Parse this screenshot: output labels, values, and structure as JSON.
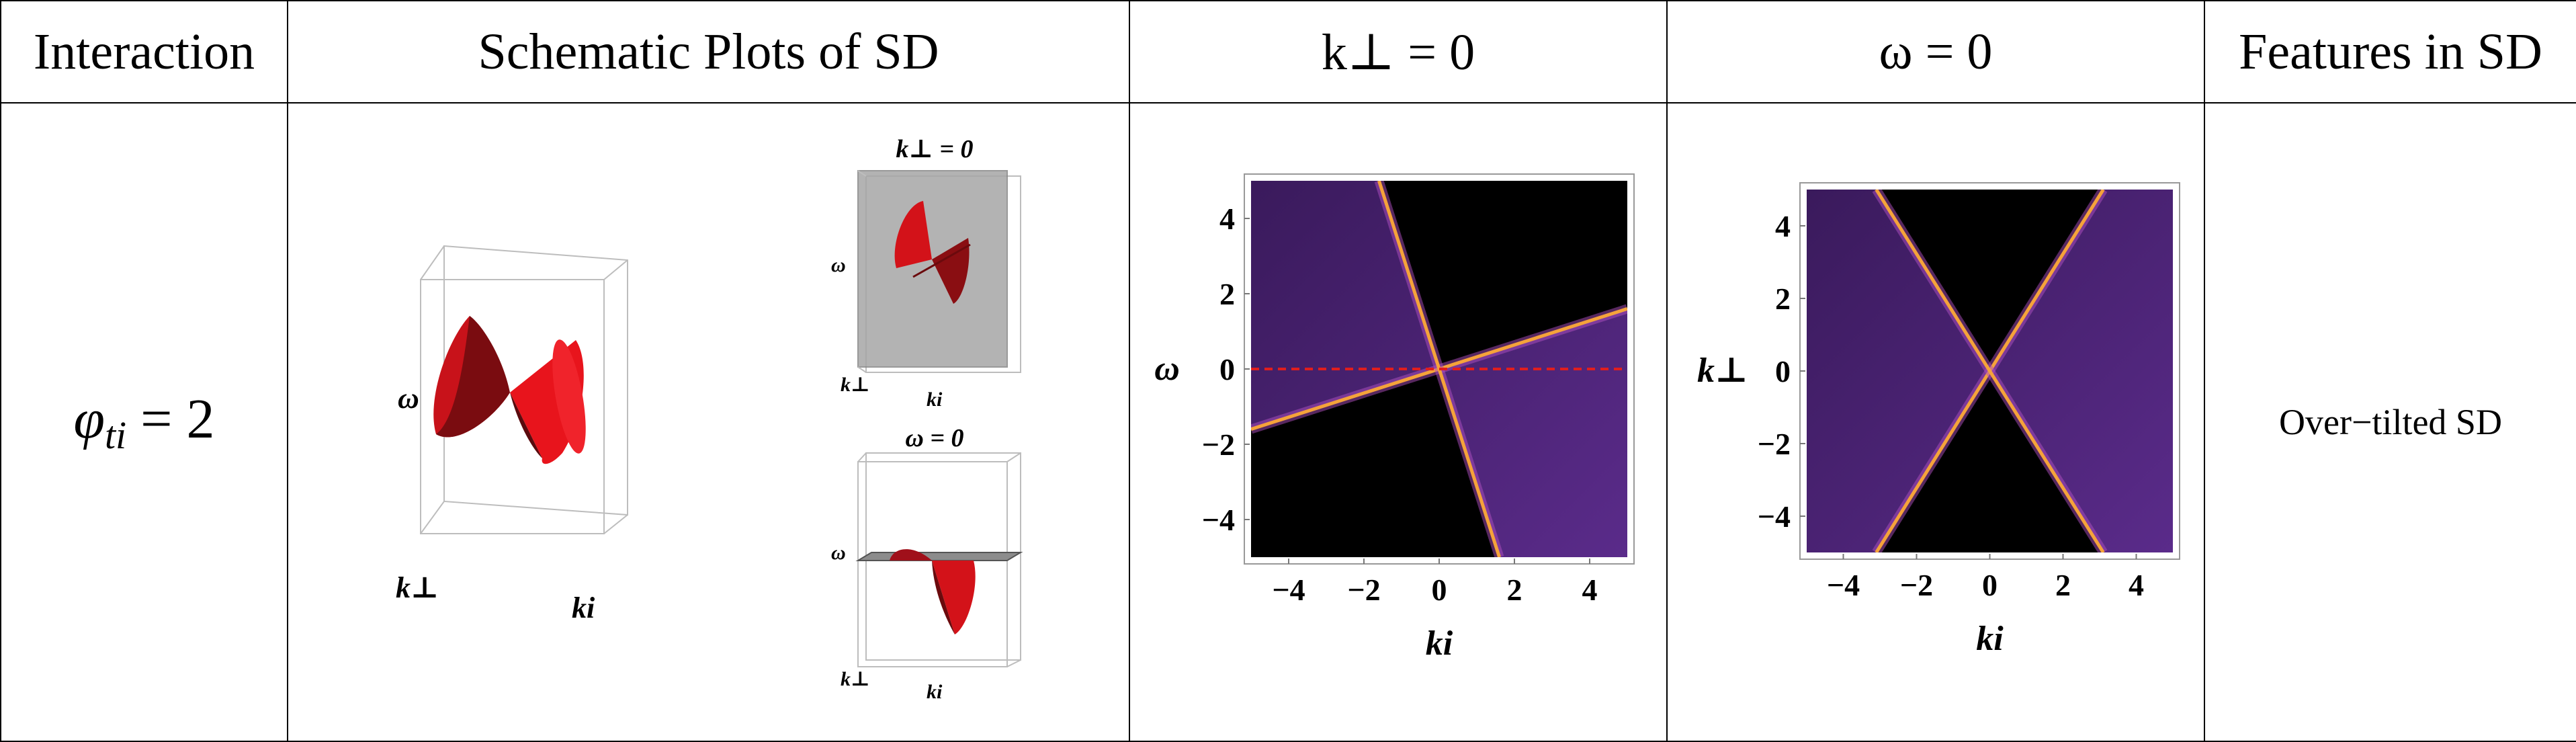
{
  "headers": {
    "interaction": "Interaction",
    "schematic": "Schematic Plots of SD",
    "kperp_zero": "k⊥ = 0",
    "omega_zero": "ω = 0",
    "features": "Features in SD"
  },
  "row": {
    "interaction_symbol": "φ",
    "interaction_sub": "ti",
    "interaction_eq": " = 2",
    "feature": "Over−tilted SD"
  },
  "schematic_labels": {
    "omega": "ω",
    "kperp": "k⊥",
    "ki": "ki",
    "slice_top_title": "k⊥ = 0",
    "slice_bottom_title": "ω = 0"
  },
  "colors": {
    "cone_red": "#e8141c",
    "cone_dark": "#6a0d10",
    "plot_black": "#000000",
    "purple": "#5a2b8a",
    "edge_orange": "#f5a33a",
    "cut_line": "#e01e1e",
    "slab_gray": "#a6a6a6"
  },
  "chart_data": [
    {
      "type": "heatmap",
      "title": "k⊥ = 0",
      "xlabel": "ki",
      "ylabel": "ω",
      "xlim": [
        -5,
        5
      ],
      "ylim": [
        -5,
        5
      ],
      "xticks": [
        -4,
        -2,
        0,
        2,
        4
      ],
      "yticks": [
        -4,
        -2,
        0,
        2,
        4
      ],
      "xtick_labels": [
        "−4",
        "−2",
        "0",
        "2",
        "4"
      ],
      "ytick_labels": [
        "−4",
        "−2",
        "0",
        "2",
        "4"
      ],
      "bright_edges": [
        {
          "from": [
            -5,
            -1.6
          ],
          "to": [
            5,
            1.6
          ]
        },
        {
          "from": [
            -1.6,
            5
          ],
          "to": [
            1.6,
            -5
          ]
        }
      ],
      "cut_line": {
        "y": 0,
        "style": "dashed"
      }
    },
    {
      "type": "heatmap",
      "title": "ω = 0",
      "xlabel": "ki",
      "ylabel": "k⊥",
      "xlim": [
        -5,
        5
      ],
      "ylim": [
        -5,
        5
      ],
      "xticks": [
        -4,
        -2,
        0,
        2,
        4
      ],
      "yticks": [
        -4,
        -2,
        0,
        2,
        4
      ],
      "xtick_labels": [
        "−4",
        "−2",
        "0",
        "2",
        "4"
      ],
      "ytick_labels": [
        "−4",
        "−2",
        "0",
        "2",
        "4"
      ],
      "bright_edges": [
        {
          "from": [
            -3.1,
            -5
          ],
          "to": [
            3.1,
            5
          ]
        },
        {
          "from": [
            -3.1,
            5
          ],
          "to": [
            3.1,
            -5
          ]
        }
      ]
    }
  ]
}
